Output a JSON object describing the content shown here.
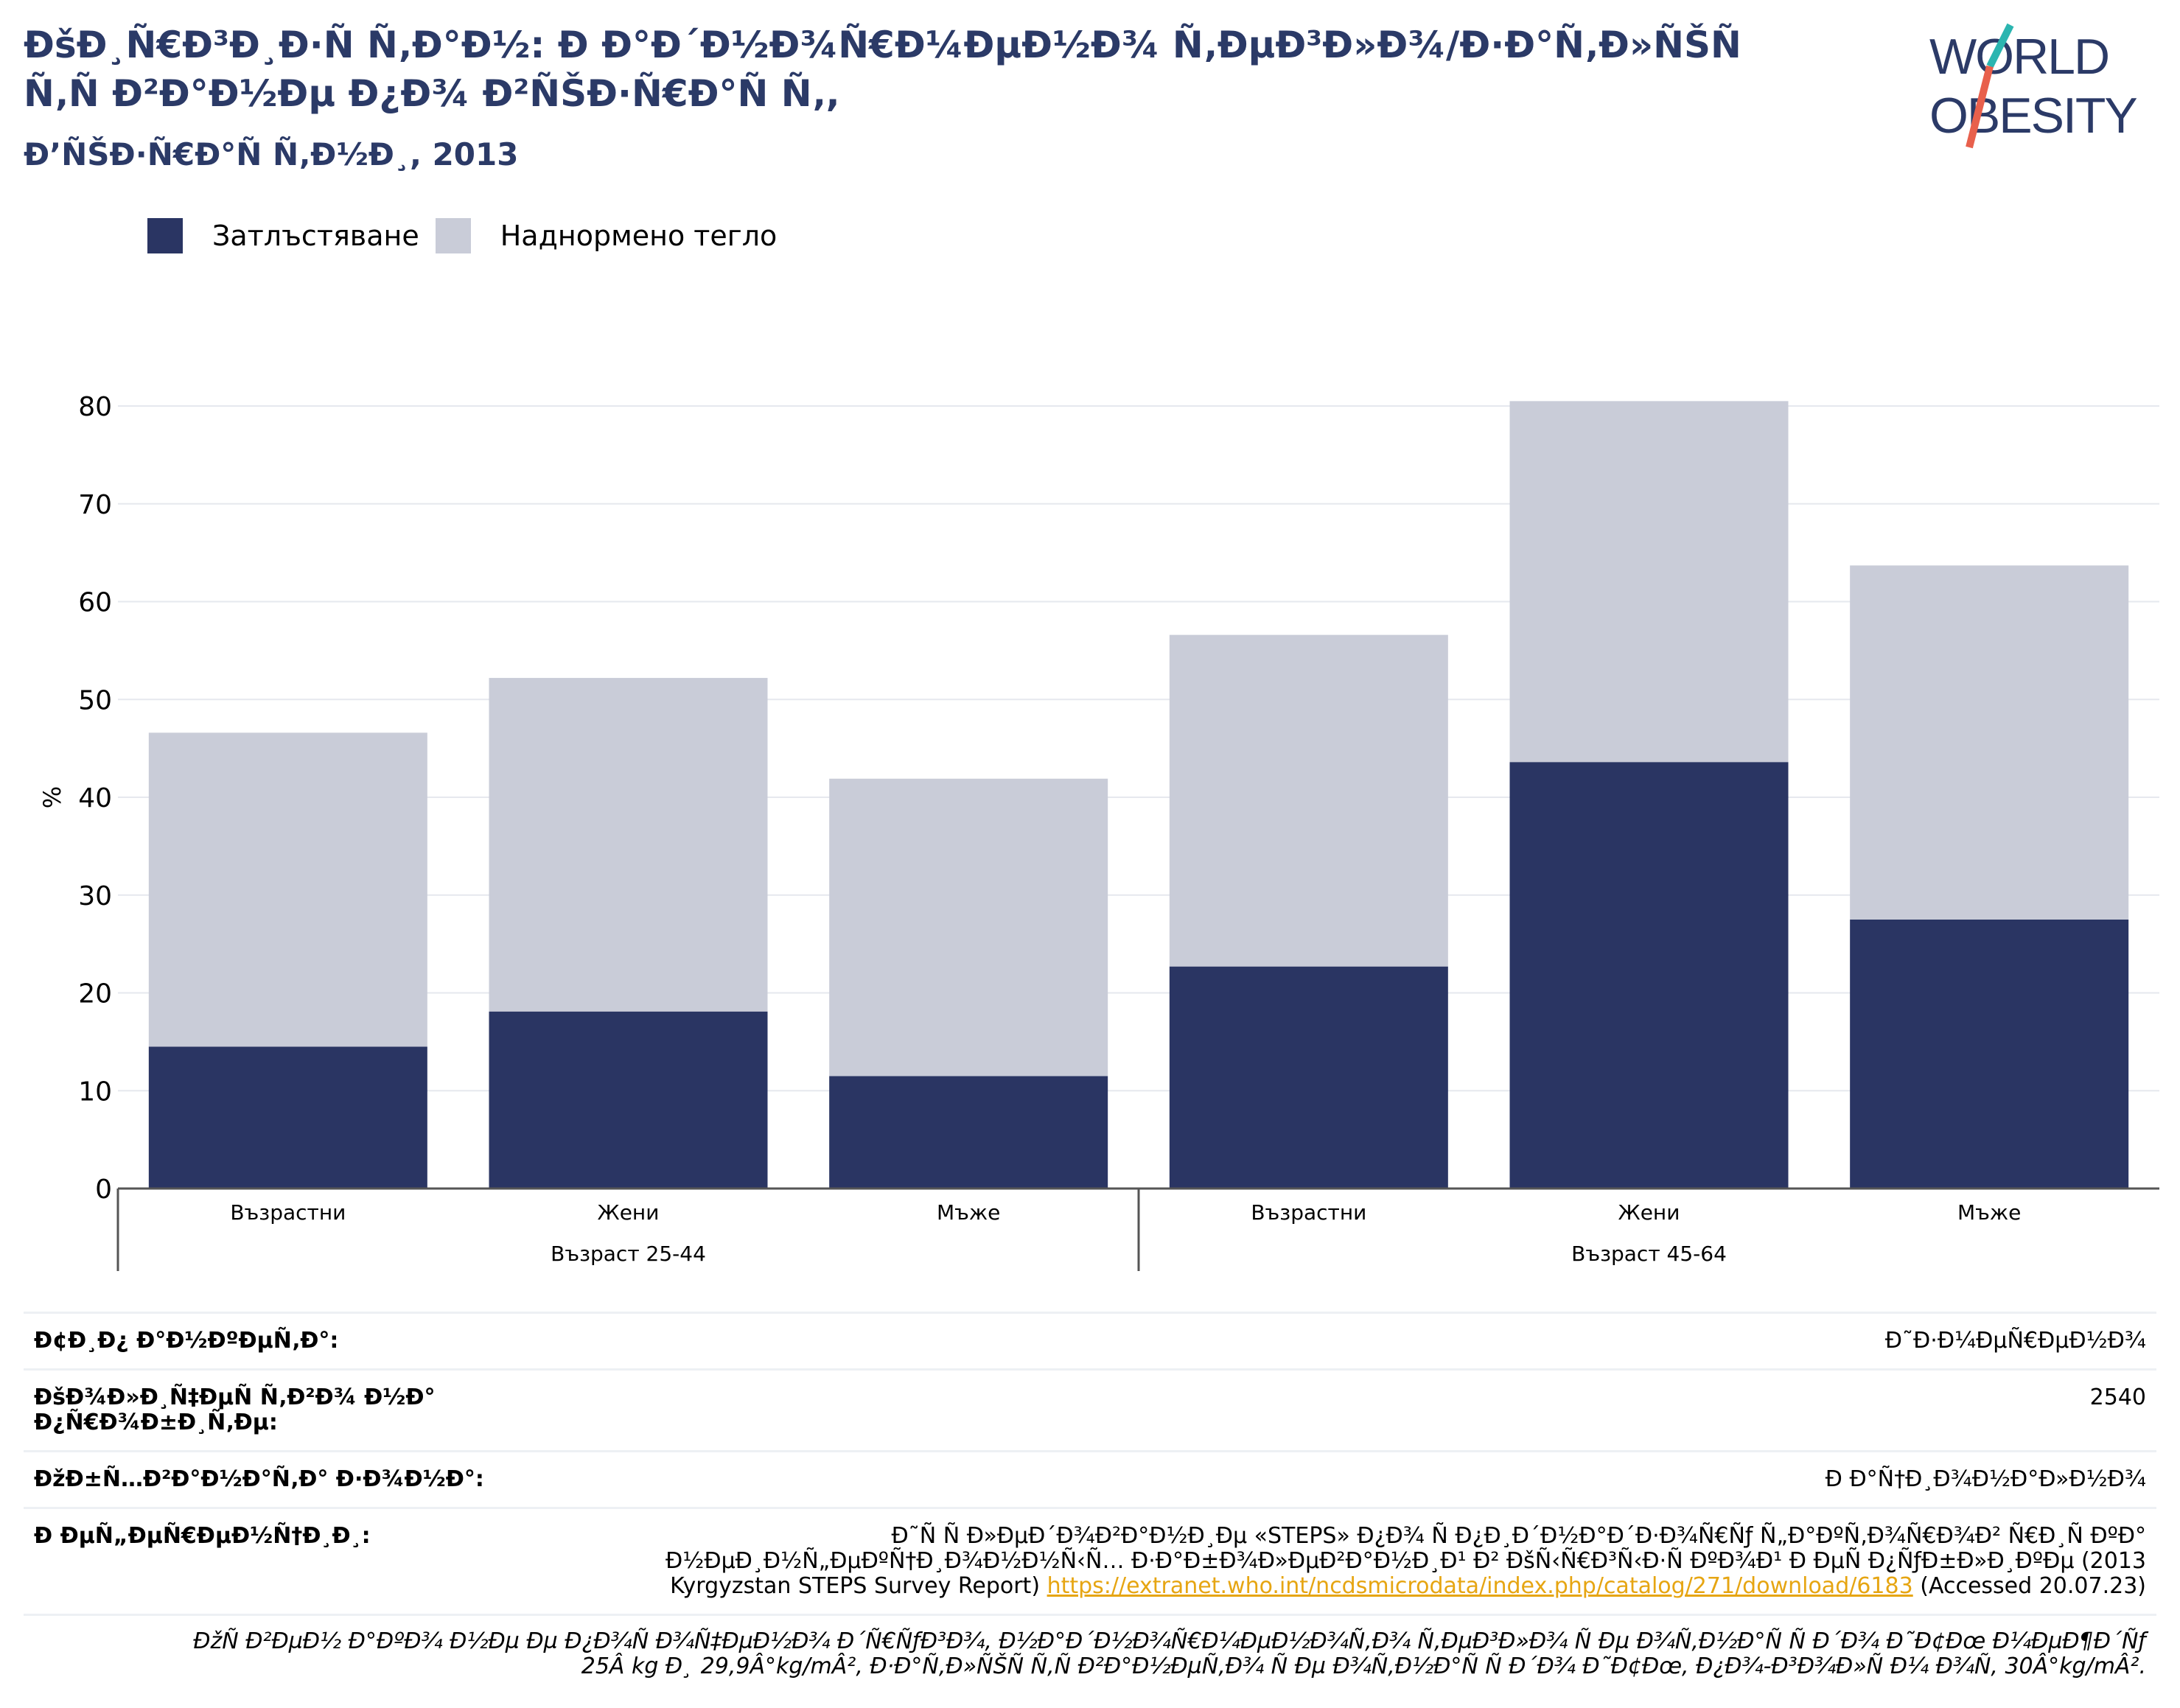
{
  "header": {
    "title": "ÐšÐ¸Ñ€Ð³Ð¸Ð·Ñ Ñ‚Ð°Ð½: Ð Ð°Ð´Ð½Ð¾Ñ€Ð¼ÐµÐ½Ð¾ Ñ‚ÐµÐ³Ð»Ð¾/Ð·Ð°Ñ‚Ð»ÑŠÑ Ñ‚Ñ Ð²Ð°Ð½Ðµ Ð¿Ð¾ Ð²ÑŠÐ·Ñ€Ð°Ñ Ñ‚,",
    "subtitle": "Ð’ÑŠÐ·Ñ€Ð°Ñ Ñ‚Ð½Ð¸, 2013"
  },
  "logo": {
    "line1": "WORLD",
    "line2": "OBESITY",
    "colors": {
      "text": "#2b3a67",
      "slash_teal": "#2bb5b0",
      "slash_red": "#e8604c"
    }
  },
  "colors": {
    "obesity": "#2a3563",
    "overweight": "#c9ccd8",
    "grid": "#e6e8ee",
    "axis": "#555555"
  },
  "chart_data": {
    "type": "bar",
    "stacked": true,
    "ylabel": "%",
    "ylim": [
      0,
      80
    ],
    "yticks": [
      0,
      10,
      20,
      30,
      40,
      50,
      60,
      70,
      80
    ],
    "grid": true,
    "legend_position": "top-left",
    "categories": [
      "Възрастни",
      "Жени",
      "Мъже",
      "Възрастни",
      "Жени",
      "Мъже"
    ],
    "groups": [
      {
        "label": "Възраст 25-44",
        "category_count": 3
      },
      {
        "label": "Възраст 45-64",
        "category_count": 3
      }
    ],
    "series": [
      {
        "name": "Затлъстяване",
        "values": [
          14.5,
          18.1,
          11.5,
          22.7,
          43.6,
          27.5
        ]
      },
      {
        "name": "Наднормено тегло",
        "values": [
          32.1,
          34.1,
          30.4,
          33.9,
          36.9,
          36.2
        ]
      }
    ]
  },
  "meta": {
    "rows": [
      {
        "key": "Ð¢Ð¸Ð¿ Ð°Ð½ÐºÐµÑ‚Ð°:",
        "value": "Ð˜Ð·Ð¼ÐµÑ€ÐµÐ½Ð¾"
      },
      {
        "key": "ÐšÐ¾Ð»Ð¸Ñ‡ÐµÑ Ñ‚Ð²Ð¾ Ð½Ð° Ð¿Ñ€Ð¾Ð±Ð¸Ñ‚Ðµ:",
        "value": "2540"
      },
      {
        "key": "ÐžÐ±Ñ…Ð²Ð°Ð½Ð°Ñ‚Ð° Ð·Ð¾Ð½Ð°:",
        "value": "Ð Ð°Ñ†Ð¸Ð¾Ð½Ð°Ð»Ð½Ð¾"
      }
    ],
    "reference_key": "Ð ÐµÑ„ÐµÑ€ÐµÐ½Ñ†Ð¸Ð¸:",
    "reference_line1": "Ð˜Ñ Ñ Ð»ÐµÐ´Ð¾Ð²Ð°Ð½Ð¸Ðµ «STEPS» Ð¿Ð¾ Ñ Ð¿Ð¸Ð´Ð½Ð°Ð´Ð·Ð¾Ñ€Ñƒ Ñ„Ð°ÐºÑ‚Ð¾Ñ€Ð¾Ð² Ñ€Ð¸Ñ ÐºÐ°",
    "reference_line2": "Ð½ÐµÐ¸Ð½Ñ„ÐµÐºÑ†Ð¸Ð¾Ð½Ð½Ñ‹Ñ… Ð·Ð°Ð±Ð¾Ð»ÐµÐ²Ð°Ð½Ð¸Ð¹ Ð² ÐšÑ‹Ñ€Ð³Ñ‹Ð·Ñ ÐºÐ¾Ð¹ Ð ÐµÑ Ð¿ÑƒÐ±Ð»Ð¸ÐºÐµ (2013",
    "reference_line3_prefix": "Kyrgyzstan STEPS Survey Report)",
    "reference_link": "https://extranet.who.int/ncdsmicrodata/index.php/catalog/271/download/6183",
    "reference_suffix": "(Accessed 20.07.23)",
    "note_line1": "ÐžÑ Ð²ÐµÐ½ Ð°ÐºÐ¾ Ð½Ðµ Ðµ Ð¿Ð¾Ñ Ð¾Ñ‡ÐµÐ½Ð¾ Ð´Ñ€ÑƒÐ³Ð¾, Ð½Ð°Ð´Ð½Ð¾Ñ€Ð¼ÐµÐ½Ð¾Ñ‚Ð¾ Ñ‚ÐµÐ³Ð»Ð¾ Ñ Ðµ Ð¾Ñ‚Ð½Ð°Ñ Ñ  Ð´Ð¾ Ð˜Ð¢Ðœ Ð¼ÐµÐ¶Ð´Ñƒ",
    "note_line2": "25Â kg Ð¸ 29,9Â°kg/mÂ², Ð·Ð°Ñ‚Ð»ÑŠÑ Ñ‚Ñ Ð²Ð°Ð½ÐµÑ‚Ð¾ Ñ Ðµ Ð¾Ñ‚Ð½Ð°Ñ Ñ  Ð´Ð¾ Ð˜Ð¢Ðœ, Ð¿Ð¾-Ð³Ð¾Ð»Ñ Ð¼ Ð¾Ñ‚ 30Â°kg/mÂ²."
  }
}
